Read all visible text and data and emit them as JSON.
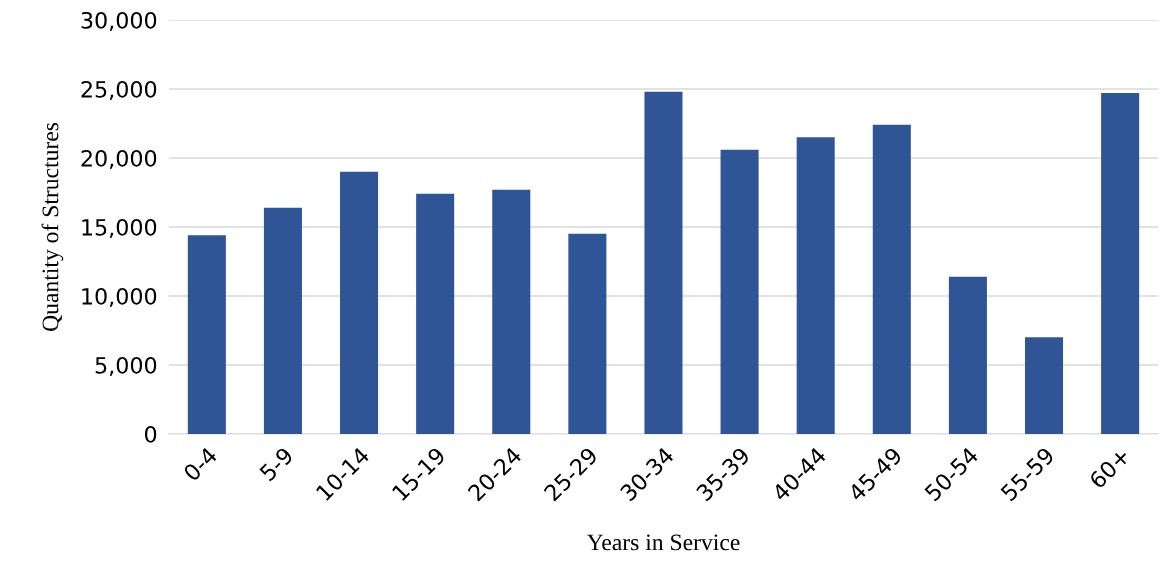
{
  "chart_data": {
    "type": "bar",
    "xlabel": "Years in Service",
    "ylabel": "Quantity of Structures",
    "categories": [
      "0-4",
      "5-9",
      "10-14",
      "15-19",
      "20-24",
      "25-29",
      "30-34",
      "35-39",
      "40-44",
      "45-49",
      "50-54",
      "55-59",
      "60+"
    ],
    "values": [
      14400,
      16400,
      19000,
      17400,
      17700,
      14500,
      24800,
      20600,
      21500,
      22400,
      11400,
      7000,
      24700
    ],
    "color": "#2f5597",
    "ylim": [
      0,
      30000
    ],
    "yticks": [
      {
        "value": 0,
        "label": "0"
      },
      {
        "value": 5000,
        "label": "5,000"
      },
      {
        "value": 10000,
        "label": "10,000"
      },
      {
        "value": 15000,
        "label": "15,000"
      },
      {
        "value": 20000,
        "label": "20,000"
      },
      {
        "value": 25000,
        "label": "25,000"
      },
      {
        "value": 30000,
        "label": "30,000"
      }
    ],
    "grid": "y",
    "legend": false
  }
}
